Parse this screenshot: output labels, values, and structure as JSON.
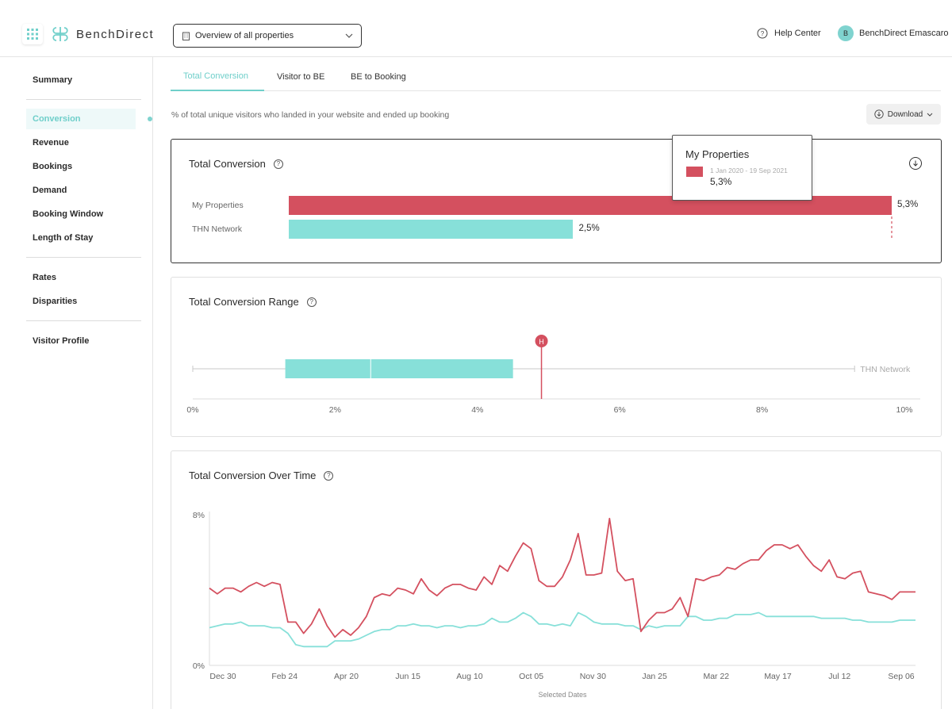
{
  "header": {
    "logo_text": "BenchDirect",
    "property_select": "Overview of all properties",
    "help_label": "Help Center",
    "user_initial": "B",
    "user_name": "BenchDirect Emascaro"
  },
  "sidebar": {
    "items": [
      {
        "label": "Summary"
      },
      {
        "label": "Conversion",
        "active": true
      },
      {
        "label": "Revenue"
      },
      {
        "label": "Bookings"
      },
      {
        "label": "Demand"
      },
      {
        "label": "Booking Window"
      },
      {
        "label": "Length of Stay"
      },
      {
        "label": "Rates"
      },
      {
        "label": "Disparities"
      },
      {
        "label": "Visitor Profile"
      }
    ]
  },
  "tabs": [
    {
      "label": "Total Conversion",
      "active": true
    },
    {
      "label": "Visitor to BE"
    },
    {
      "label": "BE to Booking"
    }
  ],
  "subtitle": "% of total unique visitors who landed in your website and ended up booking",
  "download_label": "Download",
  "colors": {
    "primary": "#d4505f",
    "secondary": "#87e0d9",
    "accent": "#6fcfca"
  },
  "card1": {
    "title": "Total Conversion",
    "rows": [
      {
        "label": "My Properties",
        "value": "5,3%"
      },
      {
        "label": "THN Network",
        "value": "2,5%"
      }
    ]
  },
  "tooltip": {
    "title": "My Properties",
    "date": "1 Jan 2020 - 19 Sep 2021",
    "value": "5,3%"
  },
  "card2": {
    "title": "Total Conversion Range",
    "marker_label": "H",
    "network_label": "THN Network"
  },
  "card3": {
    "title": "Total Conversion Over Time",
    "xlabel": "Selected Dates"
  },
  "chart_data": [
    {
      "type": "bar",
      "title": "Total Conversion",
      "categories": [
        "My Properties",
        "THN Network"
      ],
      "values": [
        5.3,
        2.5
      ],
      "value_labels": [
        "5,3%",
        "2,5%"
      ],
      "xlim": [
        0,
        5.3
      ]
    },
    {
      "type": "box",
      "title": "Total Conversion Range",
      "series": [
        {
          "name": "THN Network",
          "min": 0,
          "q1": 1.3,
          "median": 2.5,
          "q3": 4.5,
          "max": 9.3
        }
      ],
      "marker": {
        "label": "H",
        "value": 4.9
      },
      "ticks": [
        "0%",
        "2%",
        "4%",
        "6%",
        "8%",
        "10%"
      ],
      "xlim": [
        0,
        10
      ]
    },
    {
      "type": "line",
      "title": "Total Conversion Over Time",
      "xlabel": "Selected Dates",
      "ylim": [
        0,
        8
      ],
      "yticks": [
        "0%",
        "8%"
      ],
      "xticks": [
        "Dec 30",
        "Feb 24",
        "Apr 20",
        "Jun 15",
        "Aug 10",
        "Oct 05",
        "Nov 30",
        "Jan 25",
        "Mar 22",
        "May 17",
        "Jul 12",
        "Sep 06"
      ],
      "series": [
        {
          "values": [
            4.1,
            3.8,
            4.1,
            4.1,
            3.9,
            4.2,
            4.4,
            4.2,
            4.4,
            4.3,
            2.3,
            2.3,
            1.7,
            2.2,
            3.0,
            2.1,
            1.5,
            1.9,
            1.6,
            2.0,
            2.6,
            3.6,
            3.8,
            3.7,
            4.1,
            4.0,
            3.8,
            4.6,
            4.0,
            3.7,
            4.1,
            4.3,
            4.3,
            4.1,
            4.0,
            4.7,
            4.3,
            5.3,
            5.0,
            5.8,
            6.5,
            6.2,
            4.5,
            4.2,
            4.2,
            4.7,
            5.6,
            7.0,
            4.8,
            4.8,
            4.9,
            7.8,
            5.0,
            4.5,
            4.6,
            1.8,
            2.4,
            2.8,
            2.8,
            3.0,
            3.6,
            2.6,
            4.6,
            4.5,
            4.7,
            4.8,
            5.2,
            5.1,
            5.4,
            5.6,
            5.6,
            6.1,
            6.4,
            6.4,
            6.2,
            6.4,
            5.8,
            5.3,
            5.0,
            5.6,
            4.7,
            4.6,
            4.9,
            5.0,
            3.9,
            3.8,
            3.7,
            3.5,
            3.9,
            3.9,
            3.9
          ]
        },
        {
          "values": [
            2.0,
            2.1,
            2.2,
            2.2,
            2.3,
            2.1,
            2.1,
            2.1,
            2.0,
            2.0,
            1.7,
            1.1,
            1.0,
            1.0,
            1.0,
            1.0,
            1.3,
            1.3,
            1.3,
            1.4,
            1.6,
            1.8,
            1.9,
            1.9,
            2.1,
            2.1,
            2.2,
            2.1,
            2.1,
            2.0,
            2.1,
            2.1,
            2.0,
            2.1,
            2.1,
            2.2,
            2.5,
            2.3,
            2.3,
            2.5,
            2.8,
            2.6,
            2.2,
            2.2,
            2.1,
            2.2,
            2.1,
            2.8,
            2.6,
            2.3,
            2.2,
            2.2,
            2.2,
            2.1,
            2.1,
            1.9,
            2.1,
            2.0,
            2.1,
            2.1,
            2.1,
            2.6,
            2.6,
            2.4,
            2.4,
            2.5,
            2.5,
            2.7,
            2.7,
            2.7,
            2.8,
            2.6,
            2.6,
            2.6,
            2.6,
            2.6,
            2.6,
            2.6,
            2.5,
            2.5,
            2.5,
            2.5,
            2.4,
            2.4,
            2.3,
            2.3,
            2.3,
            2.3,
            2.4,
            2.4,
            2.4
          ]
        }
      ]
    }
  ]
}
